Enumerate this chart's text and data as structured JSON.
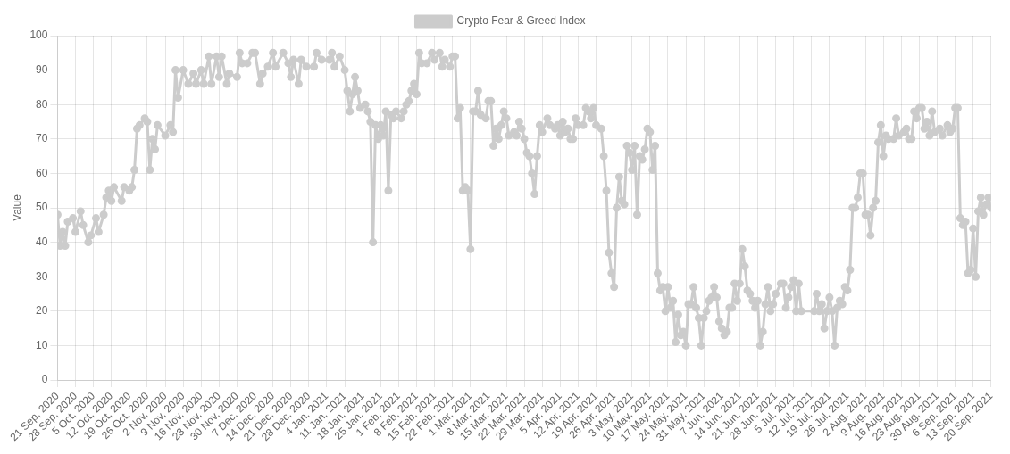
{
  "chart_data": {
    "type": "line",
    "ylabel": "Value",
    "legend": "top",
    "grid": true,
    "marker": "circle",
    "line_style": "solid",
    "xlim": [
      "2020-09-21",
      "2021-09-20"
    ],
    "ylim": [
      0,
      100
    ],
    "yticks": [
      0,
      10,
      20,
      30,
      40,
      50,
      60,
      70,
      80,
      90,
      100
    ],
    "xticks": [
      {
        "value": "2020-09-21",
        "label": "21 Sep, 2020"
      },
      {
        "value": "2020-09-28",
        "label": "28 Sep, 2020"
      },
      {
        "value": "2020-10-05",
        "label": "5 Oct, 2020"
      },
      {
        "value": "2020-10-12",
        "label": "12 Oct, 2020"
      },
      {
        "value": "2020-10-19",
        "label": "19 Oct, 2020"
      },
      {
        "value": "2020-10-26",
        "label": "26 Oct, 2020"
      },
      {
        "value": "2020-11-02",
        "label": "2 Nov, 2020"
      },
      {
        "value": "2020-11-09",
        "label": "9 Nov, 2020"
      },
      {
        "value": "2020-11-16",
        "label": "16 Nov, 2020"
      },
      {
        "value": "2020-11-23",
        "label": "23 Nov, 2020"
      },
      {
        "value": "2020-11-30",
        "label": "30 Nov, 2020"
      },
      {
        "value": "2020-12-07",
        "label": "7 Dec, 2020"
      },
      {
        "value": "2020-12-14",
        "label": "14 Dec, 2020"
      },
      {
        "value": "2020-12-21",
        "label": "21 Dec, 2020"
      },
      {
        "value": "2020-12-28",
        "label": "28 Dec, 2020"
      },
      {
        "value": "2021-01-04",
        "label": "4 Jan, 2021"
      },
      {
        "value": "2021-01-11",
        "label": "11 Jan, 2021"
      },
      {
        "value": "2021-01-18",
        "label": "18 Jan, 2021"
      },
      {
        "value": "2021-01-25",
        "label": "25 Jan, 2021"
      },
      {
        "value": "2021-02-01",
        "label": "1 Feb, 2021"
      },
      {
        "value": "2021-02-08",
        "label": "8 Feb, 2021"
      },
      {
        "value": "2021-02-15",
        "label": "15 Feb, 2021"
      },
      {
        "value": "2021-02-22",
        "label": "22 Feb, 2021"
      },
      {
        "value": "2021-03-01",
        "label": "1 Mar, 2021"
      },
      {
        "value": "2021-03-08",
        "label": "8 Mar, 2021"
      },
      {
        "value": "2021-03-15",
        "label": "15 Mar, 2021"
      },
      {
        "value": "2021-03-22",
        "label": "22 Mar, 2021"
      },
      {
        "value": "2021-03-29",
        "label": "29 Mar, 2021"
      },
      {
        "value": "2021-04-05",
        "label": "5 Apr, 2021"
      },
      {
        "value": "2021-04-12",
        "label": "12 Apr, 2021"
      },
      {
        "value": "2021-04-19",
        "label": "19 Apr, 2021"
      },
      {
        "value": "2021-04-26",
        "label": "26 Apr, 2021"
      },
      {
        "value": "2021-05-03",
        "label": "3 May, 2021"
      },
      {
        "value": "2021-05-10",
        "label": "10 May, 2021"
      },
      {
        "value": "2021-05-17",
        "label": "17 May, 2021"
      },
      {
        "value": "2021-05-24",
        "label": "24 May, 2021"
      },
      {
        "value": "2021-05-31",
        "label": "31 May, 2021"
      },
      {
        "value": "2021-06-07",
        "label": "7 Jun, 2021"
      },
      {
        "value": "2021-06-14",
        "label": "14 Jun, 2021"
      },
      {
        "value": "2021-06-21",
        "label": "21 Jun, 2021"
      },
      {
        "value": "2021-06-28",
        "label": "28 Jun, 2021"
      },
      {
        "value": "2021-07-05",
        "label": "5 Jul, 2021"
      },
      {
        "value": "2021-07-12",
        "label": "12 Jul, 2021"
      },
      {
        "value": "2021-07-19",
        "label": "19 Jul, 2021"
      },
      {
        "value": "2021-07-26",
        "label": "26 Jul, 2021"
      },
      {
        "value": "2021-08-02",
        "label": "2 Aug, 2021"
      },
      {
        "value": "2021-08-09",
        "label": "9 Aug, 2021"
      },
      {
        "value": "2021-08-16",
        "label": "16 Aug, 2021"
      },
      {
        "value": "2021-08-23",
        "label": "23 Aug, 2021"
      },
      {
        "value": "2021-08-30",
        "label": "30 Aug, 2021"
      },
      {
        "value": "2021-09-06",
        "label": "6 Sep, 2021"
      },
      {
        "value": "2021-09-13",
        "label": "13 Sep, 2021"
      },
      {
        "value": "2021-09-20",
        "label": "20 Sep, 2021"
      }
    ],
    "series": [
      {
        "name": "Crypto Fear & Greed Index",
        "color": "#cccccc",
        "x": [
          "2020-09-21",
          "2020-09-22",
          "2020-09-23",
          "2020-09-24",
          "2020-09-25",
          "2020-09-27",
          "2020-09-28",
          "2020-09-30",
          "2020-10-01",
          "2020-10-03",
          "2020-10-04",
          "2020-10-06",
          "2020-10-07",
          "2020-10-09",
          "2020-10-10",
          "2020-10-11",
          "2020-10-12",
          "2020-10-13",
          "2020-10-16",
          "2020-10-17",
          "2020-10-19",
          "2020-10-20",
          "2020-10-21",
          "2020-10-22",
          "2020-10-23",
          "2020-10-25",
          "2020-10-26",
          "2020-10-27",
          "2020-10-28",
          "2020-10-29",
          "2020-10-30",
          "2020-11-02",
          "2020-11-04",
          "2020-11-05",
          "2020-11-06",
          "2020-11-07",
          "2020-11-09",
          "2020-11-11",
          "2020-11-13",
          "2020-11-14",
          "2020-11-16",
          "2020-11-17",
          "2020-11-19",
          "2020-11-20",
          "2020-11-22",
          "2020-11-23",
          "2020-11-24",
          "2020-11-26",
          "2020-11-27",
          "2020-11-30",
          "2020-12-01",
          "2020-12-02",
          "2020-12-04",
          "2020-12-06",
          "2020-12-07",
          "2020-12-09",
          "2020-12-10",
          "2020-12-12",
          "2020-12-14",
          "2020-12-15",
          "2020-12-18",
          "2020-12-20",
          "2020-12-21",
          "2020-12-22",
          "2020-12-24",
          "2020-12-25",
          "2020-12-27",
          "2020-12-30",
          "2020-12-31",
          "2021-01-02",
          "2021-01-05",
          "2021-01-06",
          "2021-01-07",
          "2021-01-09",
          "2021-01-11",
          "2021-01-12",
          "2021-01-13",
          "2021-01-14",
          "2021-01-15",
          "2021-01-16",
          "2021-01-17",
          "2021-01-19",
          "2021-01-20",
          "2021-01-21",
          "2021-01-22",
          "2021-01-23",
          "2021-01-24",
          "2021-01-25",
          "2021-01-26",
          "2021-01-27",
          "2021-01-28",
          "2021-01-29",
          "2021-01-30",
          "2021-01-31",
          "2021-02-02",
          "2021-02-03",
          "2021-02-04",
          "2021-02-05",
          "2021-02-06",
          "2021-02-07",
          "2021-02-08",
          "2021-02-09",
          "2021-02-10",
          "2021-02-12",
          "2021-02-14",
          "2021-02-15",
          "2021-02-17",
          "2021-02-18",
          "2021-02-19",
          "2021-02-21",
          "2021-02-22",
          "2021-02-23",
          "2021-02-24",
          "2021-02-25",
          "2021-02-26",
          "2021-02-27",
          "2021-02-28",
          "2021-03-01",
          "2021-03-02",
          "2021-03-03",
          "2021-03-04",
          "2021-03-05",
          "2021-03-07",
          "2021-03-08",
          "2021-03-09",
          "2021-03-10",
          "2021-03-11",
          "2021-03-12",
          "2021-03-13",
          "2021-03-14",
          "2021-03-15",
          "2021-03-16",
          "2021-03-18",
          "2021-03-19",
          "2021-03-20",
          "2021-03-21",
          "2021-03-22",
          "2021-03-23",
          "2021-03-24",
          "2021-03-25",
          "2021-03-26",
          "2021-03-27",
          "2021-03-28",
          "2021-03-29",
          "2021-03-31",
          "2021-04-01",
          "2021-04-03",
          "2021-04-04",
          "2021-04-05",
          "2021-04-06",
          "2021-04-07",
          "2021-04-08",
          "2021-04-09",
          "2021-04-10",
          "2021-04-11",
          "2021-04-12",
          "2021-04-14",
          "2021-04-15",
          "2021-04-16",
          "2021-04-17",
          "2021-04-18",
          "2021-04-19",
          "2021-04-21",
          "2021-04-22",
          "2021-04-23",
          "2021-04-24",
          "2021-04-25",
          "2021-04-26",
          "2021-04-27",
          "2021-04-28",
          "2021-04-29",
          "2021-04-30",
          "2021-05-01",
          "2021-05-02",
          "2021-05-03",
          "2021-05-04",
          "2021-05-05",
          "2021-05-06",
          "2021-05-07",
          "2021-05-08",
          "2021-05-09",
          "2021-05-10",
          "2021-05-11",
          "2021-05-12",
          "2021-05-13",
          "2021-05-14",
          "2021-05-15",
          "2021-05-16",
          "2021-05-17",
          "2021-05-18",
          "2021-05-19",
          "2021-05-20",
          "2021-05-21",
          "2021-05-22",
          "2021-05-23",
          "2021-05-24",
          "2021-05-25",
          "2021-05-26",
          "2021-05-27",
          "2021-05-28",
          "2021-05-29",
          "2021-05-30",
          "2021-05-31",
          "2021-06-01",
          "2021-06-02",
          "2021-06-03",
          "2021-06-04",
          "2021-06-05",
          "2021-06-06",
          "2021-06-07",
          "2021-06-08",
          "2021-06-09",
          "2021-06-10",
          "2021-06-11",
          "2021-06-12",
          "2021-06-13",
          "2021-06-14",
          "2021-06-15",
          "2021-06-16",
          "2021-06-17",
          "2021-06-18",
          "2021-06-19",
          "2021-06-20",
          "2021-06-21",
          "2021-06-22",
          "2021-06-23",
          "2021-06-24",
          "2021-06-25",
          "2021-06-26",
          "2021-06-27",
          "2021-06-28",
          "2021-06-30",
          "2021-07-01",
          "2021-07-02",
          "2021-07-03",
          "2021-07-04",
          "2021-07-05",
          "2021-07-06",
          "2021-07-07",
          "2021-07-08",
          "2021-07-13",
          "2021-07-14",
          "2021-07-15",
          "2021-07-16",
          "2021-07-17",
          "2021-07-18",
          "2021-07-19",
          "2021-07-20",
          "2021-07-21",
          "2021-07-22",
          "2021-07-23",
          "2021-07-24",
          "2021-07-25",
          "2021-07-26",
          "2021-07-27",
          "2021-07-28",
          "2021-07-29",
          "2021-07-30",
          "2021-07-31",
          "2021-08-01",
          "2021-08-02",
          "2021-08-03",
          "2021-08-04",
          "2021-08-05",
          "2021-08-06",
          "2021-08-07",
          "2021-08-08",
          "2021-08-09",
          "2021-08-10",
          "2021-08-11",
          "2021-08-13",
          "2021-08-14",
          "2021-08-15",
          "2021-08-17",
          "2021-08-18",
          "2021-08-19",
          "2021-08-20",
          "2021-08-21",
          "2021-08-22",
          "2021-08-23",
          "2021-08-24",
          "2021-08-25",
          "2021-08-26",
          "2021-08-27",
          "2021-08-28",
          "2021-08-29",
          "2021-08-31",
          "2021-09-01",
          "2021-09-03",
          "2021-09-04",
          "2021-09-05",
          "2021-09-06",
          "2021-09-07",
          "2021-09-08",
          "2021-09-09",
          "2021-09-10",
          "2021-09-11",
          "2021-09-12",
          "2021-09-13",
          "2021-09-14",
          "2021-09-15",
          "2021-09-16",
          "2021-09-17",
          "2021-09-18",
          "2021-09-19",
          "2021-09-20"
        ],
        "values": [
          48,
          39,
          43,
          39,
          46,
          47,
          43,
          49,
          45,
          40,
          42,
          47,
          43,
          48,
          53,
          55,
          52,
          56,
          52,
          56,
          55,
          56,
          61,
          73,
          74,
          76,
          75,
          61,
          70,
          67,
          74,
          71,
          74,
          72,
          90,
          82,
          90,
          86,
          89,
          86,
          90,
          86,
          94,
          86,
          94,
          88,
          94,
          86,
          89,
          88,
          95,
          92,
          92,
          95,
          95,
          86,
          89,
          91,
          95,
          91,
          95,
          92,
          88,
          93,
          86,
          93,
          91,
          91,
          95,
          93,
          93,
          95,
          91,
          94,
          90,
          84,
          78,
          83,
          88,
          84,
          79,
          80,
          78,
          75,
          40,
          74,
          70,
          74,
          71,
          78,
          55,
          77,
          76,
          78,
          76,
          78,
          80,
          81,
          84,
          86,
          83,
          95,
          92,
          92,
          95,
          93,
          95,
          91,
          93,
          91,
          94,
          94,
          76,
          79,
          55,
          56,
          55,
          38,
          78,
          78,
          84,
          77,
          76,
          81,
          81,
          68,
          73,
          70,
          74,
          78,
          76,
          71,
          72,
          71,
          75,
          73,
          70,
          66,
          65,
          60,
          54,
          65,
          74,
          72,
          76,
          74,
          73,
          74,
          71,
          75,
          72,
          73,
          70,
          70,
          76,
          74,
          74,
          79,
          78,
          76,
          79,
          74,
          73,
          65,
          55,
          37,
          31,
          27,
          50,
          59,
          52,
          51,
          68,
          66,
          61,
          68,
          48,
          65,
          64,
          67,
          73,
          72,
          61,
          68,
          31,
          26,
          27,
          20,
          27,
          21,
          23,
          11,
          19,
          13,
          14,
          10,
          22,
          22,
          27,
          21,
          18,
          10,
          18,
          20,
          23,
          24,
          27,
          24,
          17,
          15,
          13,
          14,
          21,
          21,
          28,
          23,
          28,
          38,
          33,
          26,
          25,
          23,
          21,
          23,
          10,
          14,
          22,
          27,
          20,
          22,
          25,
          28,
          28,
          21,
          24,
          27,
          29,
          20,
          28,
          20,
          20,
          25,
          20,
          22,
          15,
          20,
          24,
          20,
          10,
          21,
          23,
          22,
          27,
          26,
          32,
          50,
          50,
          53,
          60,
          60,
          48,
          48,
          42,
          50,
          52,
          69,
          74,
          65,
          71,
          70,
          70,
          76,
          71,
          72,
          73,
          70,
          70,
          78,
          76,
          79,
          79,
          73,
          75,
          71,
          78,
          72,
          73,
          71,
          74,
          72,
          73,
          79,
          79,
          47,
          45,
          46,
          31,
          32,
          44,
          30,
          49,
          53,
          48,
          51,
          53,
          50
        ]
      }
    ]
  }
}
